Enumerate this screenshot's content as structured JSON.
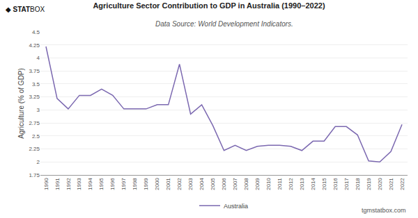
{
  "chart_data": {
    "type": "line",
    "title": "Agriculture Sector Contribution to GDP in Australia (1990–2022)",
    "subtitle": "Data Source: World Development Indicators.",
    "ylabel": "Agriculture (% of GDP)",
    "annotations": [
      "◆",
      "STAT",
      "BOX",
      "tgmstatbox.com"
    ],
    "x": [
      1990,
      1991,
      1992,
      1993,
      1994,
      1995,
      1996,
      1997,
      1998,
      1999,
      2000,
      2001,
      2002,
      2003,
      2004,
      2005,
      2006,
      2007,
      2008,
      2009,
      2010,
      2011,
      2012,
      2013,
      2014,
      2015,
      2016,
      2017,
      2018,
      2019,
      2020,
      2021,
      2022
    ],
    "series": [
      {
        "name": "Australia",
        "color": "#7B68B0",
        "values": [
          4.22,
          3.22,
          3.02,
          3.28,
          3.28,
          3.4,
          3.28,
          3.02,
          3.02,
          3.02,
          3.1,
          3.1,
          3.88,
          2.92,
          3.1,
          2.7,
          2.22,
          2.32,
          2.22,
          2.3,
          2.32,
          2.32,
          2.3,
          2.22,
          2.4,
          2.4,
          2.68,
          2.68,
          2.52,
          2.02,
          2.0,
          2.2,
          2.72
        ]
      }
    ],
    "xlim": [
      1989.5,
      2022.5
    ],
    "xticks": [
      1990,
      1991,
      1992,
      1993,
      1994,
      1995,
      1996,
      1997,
      1998,
      1999,
      2000,
      2001,
      2002,
      2003,
      2004,
      2005,
      2006,
      2007,
      2008,
      2009,
      2010,
      2011,
      2012,
      2013,
      2014,
      2015,
      2016,
      2017,
      2018,
      2019,
      2020,
      2021,
      2022
    ],
    "ylim": [
      1.75,
      4.5
    ],
    "yticks": [
      1.75,
      2.0,
      2.25,
      2.5,
      2.75,
      3.0,
      3.25,
      3.5,
      3.75,
      4.0,
      4.25,
      4.5
    ],
    "grid": "y",
    "legend": "bottom"
  }
}
